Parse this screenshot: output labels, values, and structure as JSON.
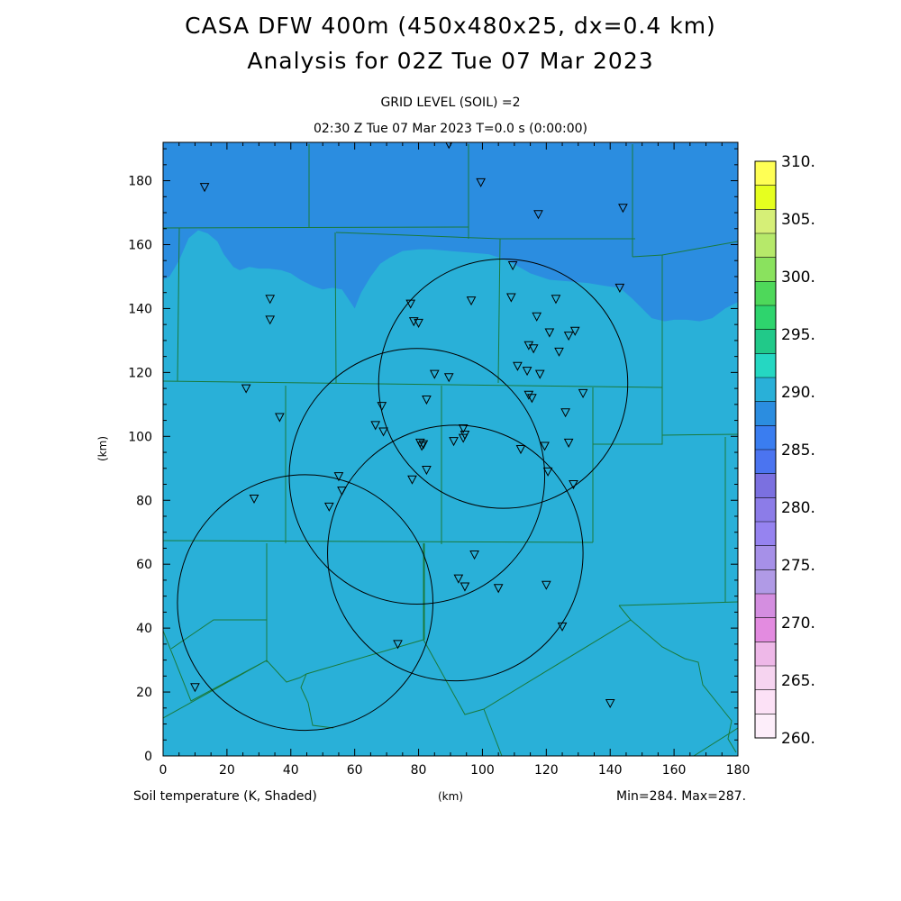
{
  "header": {
    "title_line1": "CASA DFW 400m (450x480x25, dx=0.4 km)",
    "title_line2": "Analysis for 02Z Tue 07 Mar 2023",
    "subtitle_line1": "GRID LEVEL (SOIL) =2",
    "subtitle_line2": "02:30 Z Tue 07 Mar 2023   T=0.0 s (0:00:00)"
  },
  "footer": {
    "field_label": "Soil temperature (K, Shaded)",
    "x_unit": "(km)",
    "minmax": "Min=284. Max=287."
  },
  "chart_data": {
    "type": "heatmap",
    "title": "CASA DFW 400m (450x480x25, dx=0.4 km)",
    "xlabel": "(km)",
    "ylabel": "(km)",
    "xlim": [
      0,
      180
    ],
    "ylim": [
      0,
      192
    ],
    "x_ticks": [
      0,
      20,
      40,
      60,
      80,
      100,
      120,
      140,
      160,
      180
    ],
    "y_ticks": [
      0,
      20,
      40,
      60,
      80,
      100,
      120,
      140,
      160,
      180
    ],
    "field": "Soil temperature",
    "units": "K",
    "min": 284,
    "max": 287,
    "regions": [
      {
        "name": "cold_north",
        "value_range": "280-285",
        "color": "#2b8de0"
      },
      {
        "name": "main",
        "value_range": "285-290",
        "color": "#29b0d8"
      }
    ],
    "cold_boundary": [
      [
        0,
        149
      ],
      [
        2,
        150
      ],
      [
        5,
        155
      ],
      [
        8,
        162
      ],
      [
        11,
        164.5
      ],
      [
        14,
        163.5
      ],
      [
        17,
        161
      ],
      [
        19,
        157
      ],
      [
        22,
        153
      ],
      [
        24,
        152
      ],
      [
        27,
        153
      ],
      [
        30,
        152.5
      ],
      [
        33,
        152.5
      ],
      [
        37,
        152
      ],
      [
        40,
        151
      ],
      [
        43,
        149
      ],
      [
        47,
        147
      ],
      [
        50,
        146
      ],
      [
        53,
        146.5
      ],
      [
        56,
        146
      ],
      [
        60,
        140
      ],
      [
        62,
        145
      ],
      [
        65,
        150
      ],
      [
        68,
        154
      ],
      [
        71,
        156
      ],
      [
        75,
        158
      ],
      [
        80,
        158.5
      ],
      [
        84,
        158.5
      ],
      [
        90,
        158
      ],
      [
        96,
        157.5
      ],
      [
        102,
        157
      ],
      [
        108,
        155
      ],
      [
        115,
        151
      ],
      [
        121,
        149
      ],
      [
        127,
        148.5
      ],
      [
        133,
        148
      ],
      [
        139,
        147
      ],
      [
        143,
        146.5
      ],
      [
        147,
        143
      ],
      [
        150,
        140
      ],
      [
        153,
        137
      ],
      [
        157,
        136
      ],
      [
        160,
        136.5
      ],
      [
        164,
        136.5
      ],
      [
        168,
        136
      ],
      [
        172,
        137
      ],
      [
        176,
        140
      ],
      [
        180,
        142
      ]
    ],
    "colorbar": {
      "labels": [
        "310.",
        "305.",
        "300.",
        "295.",
        "290.",
        "285.",
        "280.",
        "275.",
        "270.",
        "265.",
        "260."
      ],
      "colors": [
        "#ffff55",
        "#e6ff1f",
        "#d6ef77",
        "#b6e96a",
        "#8ae25e",
        "#4ed85a",
        "#2ed46d",
        "#21c989",
        "#25d7c2",
        "#29b0d8",
        "#2b8de0",
        "#3a7df0",
        "#4b74f0",
        "#7b70e0",
        "#8c7ce8",
        "#9683f0",
        "#a690e8",
        "#b09ae6",
        "#d48ee0",
        "#e38be0",
        "#eeb8e8",
        "#f6d4f0",
        "#fce1f6",
        "#fdeefa"
      ]
    },
    "radar_rings": [
      {
        "center": [
          106.5,
          116.5
        ],
        "radius": 39
      },
      {
        "center": [
          79.5,
          87.5
        ],
        "radius": 40
      },
      {
        "center": [
          91.5,
          63.5
        ],
        "radius": 40
      },
      {
        "center": [
          44.5,
          48
        ],
        "radius": 40
      }
    ],
    "stations": [
      [
        89.5,
        191.5
      ],
      [
        13,
        178
      ],
      [
        99.5,
        179.5
      ],
      [
        117.5,
        169.5
      ],
      [
        144,
        171.5
      ],
      [
        109.5,
        153.5
      ],
      [
        143,
        146.5
      ],
      [
        33.5,
        143
      ],
      [
        77.5,
        141.5
      ],
      [
        96.5,
        142.5
      ],
      [
        109,
        143.5
      ],
      [
        123,
        143
      ],
      [
        33.5,
        136.5
      ],
      [
        78.5,
        136
      ],
      [
        80,
        135.5
      ],
      [
        117,
        137.5
      ],
      [
        121,
        132.5
      ],
      [
        127,
        131.5
      ],
      [
        129,
        133
      ],
      [
        114.5,
        128.5
      ],
      [
        116,
        127.5
      ],
      [
        124,
        126.5
      ],
      [
        111,
        122
      ],
      [
        114,
        120.5
      ],
      [
        118,
        119.5
      ],
      [
        85,
        119.5
      ],
      [
        89.5,
        118.5
      ],
      [
        131.5,
        113.5
      ],
      [
        26,
        115
      ],
      [
        68.5,
        109.5
      ],
      [
        114.5,
        113
      ],
      [
        115.5,
        112
      ],
      [
        82.5,
        111.5
      ],
      [
        126,
        107.5
      ],
      [
        36.5,
        106
      ],
      [
        66.5,
        103.5
      ],
      [
        69,
        101.5
      ],
      [
        94,
        102.5
      ],
      [
        94.5,
        100.5
      ],
      [
        94,
        99.5
      ],
      [
        80.5,
        98
      ],
      [
        81.5,
        97.5
      ],
      [
        81,
        97
      ],
      [
        91,
        98.5
      ],
      [
        112,
        96
      ],
      [
        127,
        98
      ],
      [
        119.5,
        97
      ],
      [
        82.5,
        89.5
      ],
      [
        120.5,
        89
      ],
      [
        128.5,
        85
      ],
      [
        78,
        86.5
      ],
      [
        55,
        87.5
      ],
      [
        56,
        83
      ],
      [
        28.5,
        80.5
      ],
      [
        52,
        78
      ],
      [
        97.5,
        63
      ],
      [
        92.5,
        55.5
      ],
      [
        94.5,
        53
      ],
      [
        105,
        52.5
      ],
      [
        120,
        53.5
      ],
      [
        125,
        40.5
      ],
      [
        73.5,
        35
      ],
      [
        10,
        21.5
      ],
      [
        140,
        16.5
      ]
    ]
  }
}
